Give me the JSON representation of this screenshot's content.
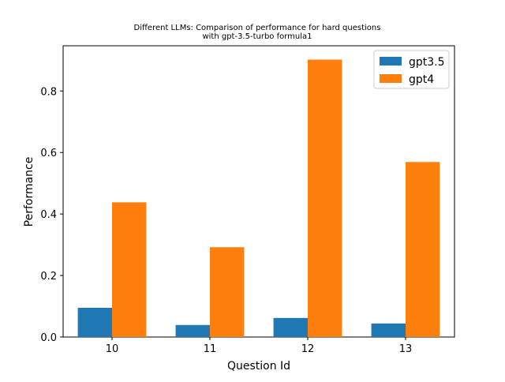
{
  "chart_data": {
    "type": "bar",
    "title": {
      "line1": "Different LLMs: Comparison of performance for hard questions",
      "line2": "with gpt-3.5-turbo formula1"
    },
    "xlabel": "Question Id",
    "ylabel": "Performance",
    "categories": [
      "10",
      "11",
      "12",
      "13"
    ],
    "series": [
      {
        "name": "gpt3.5",
        "color": "#1f77b4",
        "values": [
          0.095,
          0.039,
          0.062,
          0.044
        ]
      },
      {
        "name": "gpt4",
        "color": "#ff7f0e",
        "values": [
          0.438,
          0.292,
          0.902,
          0.569
        ]
      }
    ],
    "ylim": [
      0,
      0.947
    ],
    "yticks": [
      "0.0",
      "0.2",
      "0.4",
      "0.6",
      "0.8"
    ],
    "grid": false,
    "legend_position": "top-right"
  }
}
